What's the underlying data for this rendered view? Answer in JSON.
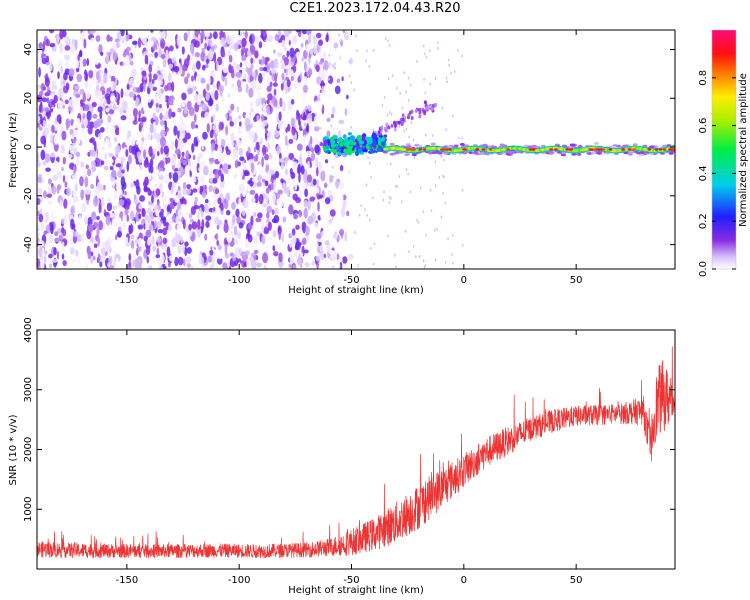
{
  "title": "C2E1.2023.172.04.43.R20",
  "colors": {
    "background": "#ffffff",
    "axis": "#000000",
    "snr_line": "#ee3333",
    "noise_violet": "#7a2cf0",
    "noise_light": "#d8c0f8"
  },
  "chart_data": [
    {
      "type": "heatmap",
      "name": "spectrogram",
      "title": "C2E1.2023.172.04.43.R20",
      "xlabel": "Height of straight line (km)",
      "ylabel": "Frequency (Hz)",
      "xlim": [
        -190,
        94
      ],
      "ylim": [
        -50,
        48
      ],
      "xticks": [
        -150,
        -100,
        -50,
        0,
        50
      ],
      "yticks": [
        -40,
        -20,
        0,
        20,
        40
      ],
      "grid": false,
      "colorbar": {
        "label": "Normalized spectral amplitude",
        "range": [
          0,
          1
        ],
        "ticks": [
          0.0,
          0.2,
          0.4,
          0.6,
          0.8
        ],
        "colormap": "hsv-inverted (violet→blue→cyan→green→yellow→red→magenta)"
      },
      "features": [
        {
          "region": "broadband noise",
          "x_range": [
            -190,
            -62
          ],
          "freq_range": [
            -50,
            48
          ],
          "amplitude": "0.0-0.15"
        },
        {
          "region": "signal onset",
          "x_range": [
            -62,
            -35
          ],
          "freq_center": 1,
          "freq_width": 6,
          "amplitude": "0.3-0.5"
        },
        {
          "region": "faint upper branch",
          "x_range": [
            -40,
            -12
          ],
          "freq_range": [
            5,
            18
          ],
          "amplitude": "0.05-0.15"
        },
        {
          "region": "carrier line",
          "x_range": [
            -35,
            94
          ],
          "freq_center": -1,
          "freq_width": 3,
          "amplitude": "0.6-0.95"
        }
      ]
    },
    {
      "type": "line",
      "name": "snr",
      "xlabel": "Height of straight line (km)",
      "ylabel": "SNR (10 * v/v)",
      "xlim": [
        -190,
        94
      ],
      "ylim": [
        0,
        4000
      ],
      "xticks": [
        -150,
        -100,
        -50,
        0,
        50
      ],
      "yticks": [
        1000,
        2000,
        3000,
        4000
      ],
      "grid": false,
      "series": [
        {
          "color": "#ee3333",
          "x": [
            -190,
            -170,
            -150,
            -130,
            -110,
            -90,
            -70,
            -60,
            -50,
            -40,
            -30,
            -20,
            -10,
            0,
            10,
            20,
            30,
            40,
            50,
            60,
            70,
            80,
            83,
            85,
            88,
            94
          ],
          "y": [
            330,
            310,
            300,
            300,
            310,
            300,
            320,
            360,
            450,
            580,
            780,
            1050,
            1350,
            1650,
            1950,
            2150,
            2350,
            2480,
            2560,
            2580,
            2600,
            2650,
            2000,
            2650,
            2900,
            2800
          ],
          "noise_amplitude": [
            200,
            180,
            170,
            170,
            170,
            170,
            180,
            220,
            320,
            400,
            500,
            550,
            500,
            400,
            380,
            350,
            300,
            280,
            250,
            250,
            250,
            350,
            500,
            800,
            900,
            500
          ]
        }
      ]
    }
  ]
}
